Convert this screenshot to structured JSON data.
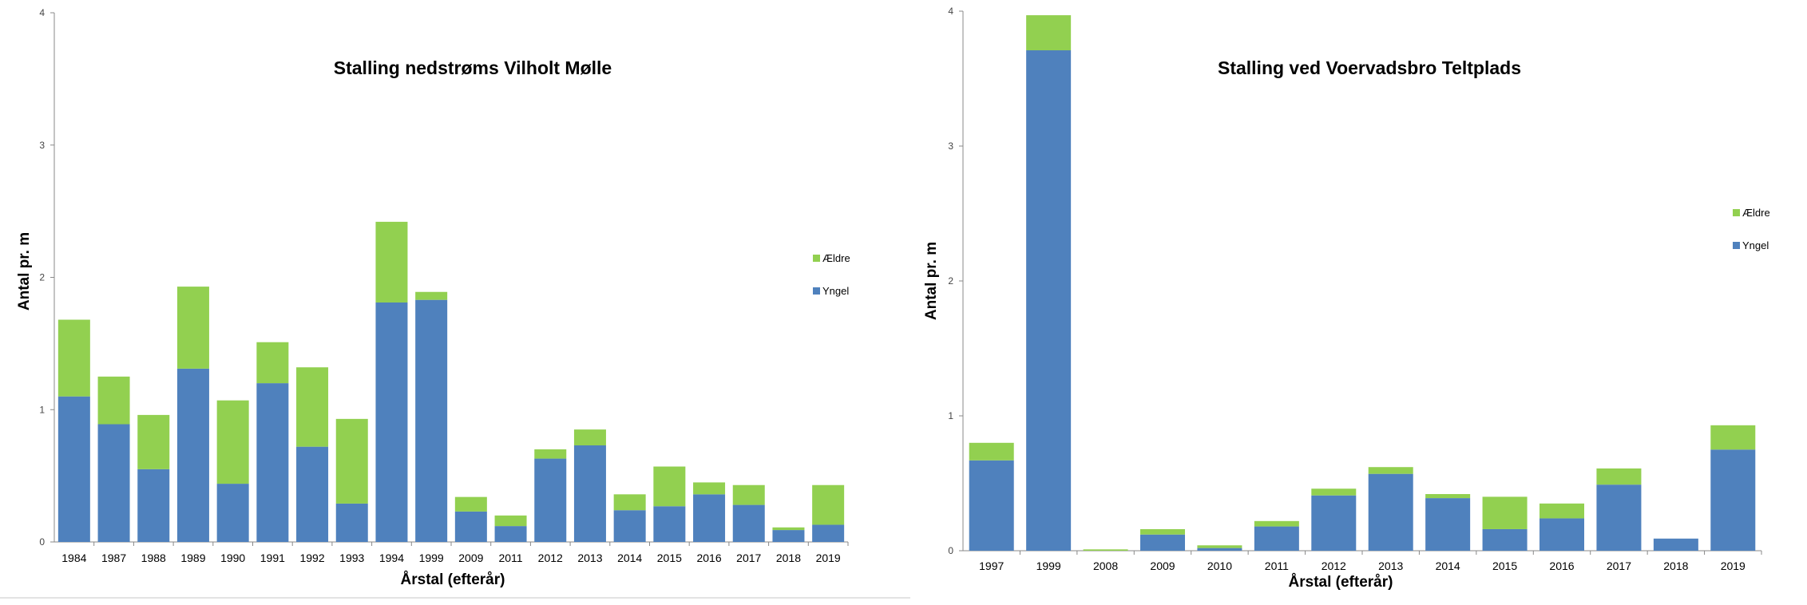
{
  "chart_data": [
    {
      "type": "bar",
      "stacked": true,
      "title": "Stalling nedstrøms Vilholt Mølle",
      "xlabel": "Årstal (efterår)",
      "ylabel": "Antal pr. m",
      "ylim": [
        0,
        4
      ],
      "yticks": [
        "0",
        "1",
        "2",
        "3",
        "4"
      ],
      "grid": false,
      "legend_position": "right",
      "categories": [
        "1984",
        "1987",
        "1988",
        "1989",
        "1990",
        "1991",
        "1992",
        "1993",
        "1994",
        "1999",
        "2009",
        "2011",
        "2012",
        "2013",
        "2014",
        "2015",
        "2016",
        "2017",
        "2018",
        "2019"
      ],
      "series": [
        {
          "name": "Yngel",
          "color": "#4f81bd",
          "values": [
            1.1,
            0.89,
            0.55,
            1.31,
            0.44,
            1.2,
            0.72,
            0.29,
            1.81,
            1.83,
            0.23,
            0.12,
            0.63,
            0.73,
            0.24,
            0.27,
            0.36,
            0.28,
            0.09,
            0.13
          ]
        },
        {
          "name": "Ældre",
          "color": "#92d050",
          "values": [
            0.58,
            0.36,
            0.41,
            0.62,
            0.63,
            0.31,
            0.6,
            0.64,
            0.61,
            0.06,
            0.11,
            0.08,
            0.07,
            0.12,
            0.12,
            0.3,
            0.09,
            0.15,
            0.02,
            0.3
          ]
        }
      ]
    },
    {
      "type": "bar",
      "stacked": true,
      "title": "Stalling ved Voervadsbro Teltplads",
      "xlabel": "Årstal (efterår)",
      "ylabel": "Antal pr. m",
      "ylim": [
        0,
        4
      ],
      "yticks": [
        "0",
        "1",
        "2",
        "3",
        "4"
      ],
      "grid": false,
      "legend_position": "right",
      "categories": [
        "1997",
        "1999",
        "2008",
        "2009",
        "2010",
        "2011",
        "2012",
        "2013",
        "2014",
        "2015",
        "2016",
        "2017",
        "2018",
        "2019"
      ],
      "series": [
        {
          "name": "Yngel",
          "color": "#4f81bd",
          "values": [
            0.67,
            3.71,
            0.0,
            0.12,
            0.02,
            0.18,
            0.41,
            0.57,
            0.39,
            0.16,
            0.24,
            0.49,
            0.09,
            0.75
          ]
        },
        {
          "name": "Ældre",
          "color": "#92d050",
          "values": [
            0.13,
            0.26,
            0.01,
            0.04,
            0.02,
            0.04,
            0.05,
            0.05,
            0.03,
            0.24,
            0.11,
            0.12,
            0.0,
            0.18
          ]
        }
      ]
    }
  ]
}
